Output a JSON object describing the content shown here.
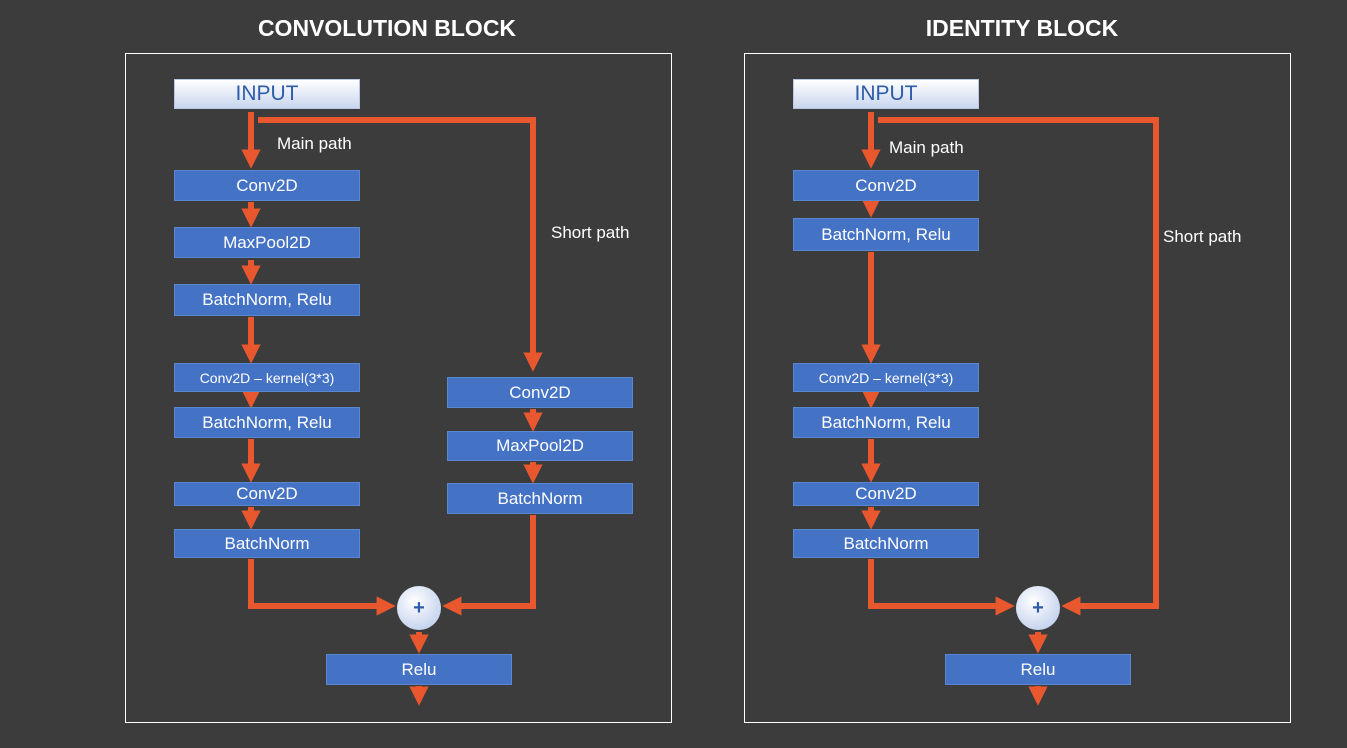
{
  "convolution_block": {
    "title": "CONVOLUTION BLOCK",
    "input": "INPUT",
    "main_path_label": "Main path",
    "short_path_label": "Short path",
    "main_layers": [
      "Conv2D",
      "MaxPool2D",
      "BatchNorm, Relu",
      "Conv2D – kernel(3*3)",
      "BatchNorm, Relu",
      "Conv2D",
      "BatchNorm"
    ],
    "short_layers": [
      "Conv2D",
      "MaxPool2D",
      "BatchNorm"
    ],
    "adder": "+",
    "output": "Relu"
  },
  "identity_block": {
    "title": "IDENTITY BLOCK",
    "input": "INPUT",
    "main_path_label": "Main path",
    "short_path_label": "Short path",
    "main_layers": [
      "Conv2D",
      "BatchNorm, Relu",
      "Conv2D – kernel(3*3)",
      "BatchNorm, Relu",
      "Conv2D",
      "BatchNorm"
    ],
    "adder": "+",
    "output": "Relu"
  },
  "colors": {
    "background": "#3c3c3c",
    "layer_fill": "#4472c4",
    "arrow": "#e8572e",
    "panel_border": "#ffffff"
  }
}
